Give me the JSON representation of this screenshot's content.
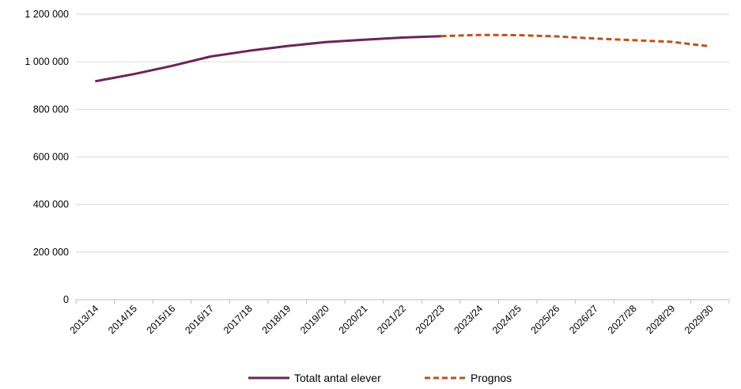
{
  "chart_data": {
    "type": "line",
    "title": "",
    "xlabel": "",
    "ylabel": "",
    "ylim": [
      0,
      1200000
    ],
    "yticks": [
      0,
      200000,
      400000,
      600000,
      800000,
      1000000,
      1200000
    ],
    "ytick_labels": [
      "0",
      "200 000",
      "400 000",
      "600 000",
      "800 000",
      "1 000 000",
      "1 200 000"
    ],
    "grid": "horizontal",
    "legend_position": "bottom",
    "categories": [
      "2013/14",
      "2014/15",
      "2015/16",
      "2016/17",
      "2017/18",
      "2018/19",
      "2019/20",
      "2020/21",
      "2021/22",
      "2022/23",
      "2023/24",
      "2024/25",
      "2025/26",
      "2026/27",
      "2027/28",
      "2028/29",
      "2029/30"
    ],
    "series": [
      {
        "name": "Totalt antal elever",
        "color": "#6b2457",
        "style": "solid",
        "values": [
          918000,
          948000,
          983000,
          1022000,
          1046000,
          1066000,
          1083000,
          1093000,
          1102000,
          1108000,
          null,
          null,
          null,
          null,
          null,
          null,
          null
        ]
      },
      {
        "name": "Prognos",
        "color": "#c0501f",
        "style": "dashed",
        "values": [
          null,
          null,
          null,
          null,
          null,
          null,
          null,
          null,
          null,
          1108000,
          1113000,
          1112000,
          1107000,
          1098000,
          1091000,
          1084000,
          1065000
        ]
      }
    ]
  }
}
